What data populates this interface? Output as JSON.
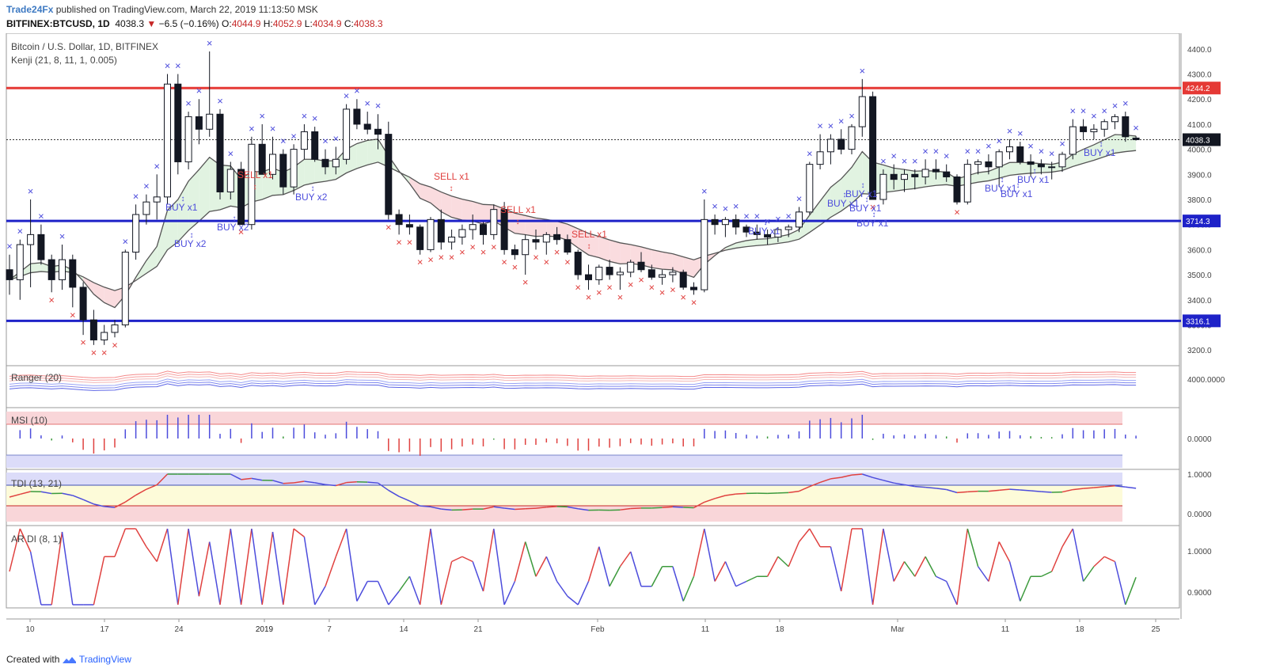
{
  "header": {
    "brand": "Trade24Fx",
    "published": "published on TradingView.com, March 22, 2019 11:13:50 MSK",
    "symbol": "BITFINEX:BTCUSD, 1D",
    "last": "4038.3",
    "change": "−6.5 (−0.16%)",
    "o_label": "O:",
    "o": "4044.9",
    "h_label": "H:",
    "h": "4052.9",
    "l_label": "L:",
    "l": "4034.9",
    "c_label": "C:",
    "c": "4038.3"
  },
  "main_pane": {
    "title": "Bitcoin / U.S. Dollar, 1D, BITFINEX",
    "indicator": "Kenji (21, 8, 11, 1, 0.005)",
    "y_ticks": [
      "4400.0",
      "4300.0",
      "4200.0",
      "4100.0",
      "4000.0",
      "3900.0",
      "3800.0",
      "3700.0",
      "3600.0",
      "3500.0",
      "3400.0",
      "3300.0",
      "3200.0"
    ],
    "price_tags": [
      {
        "label": "4244.2",
        "color": "#e53935"
      },
      {
        "label": "4038.3",
        "color": "#131722"
      },
      {
        "label": "3714.3",
        "color": "#1e22c8"
      },
      {
        "label": "3316.1",
        "color": "#1e22c8"
      }
    ],
    "signals": [
      "SELL x1",
      "SELL x1",
      "SELL x1",
      "SELL x1",
      "BUY x1",
      "BUY x2",
      "BUY x2",
      "BUY x2",
      "BUY x1",
      "BUY x1",
      "BUY x1",
      "BUY x1",
      "BUY x1",
      "BUY x1",
      "BUY x1",
      "BUY x1",
      "BUY x1"
    ]
  },
  "ranger_pane": {
    "title": "Ranger (20)",
    "tick": "4000.0000"
  },
  "msi_pane": {
    "title": "MSI (10)",
    "tick": "0.0000"
  },
  "tdi_pane": {
    "title": "TDI (13, 21)",
    "ticks": [
      "1.0000",
      "0.0000"
    ]
  },
  "ardi_pane": {
    "title": "AR DI (8, 1)",
    "ticks": [
      "1.0000",
      "0.9000"
    ]
  },
  "x_axis": [
    "10",
    "17",
    "24",
    "2019",
    "7",
    "14",
    "21",
    "Feb",
    "11",
    "18",
    "Mar",
    "11",
    "18",
    "25"
  ],
  "footer": {
    "created": "Created with",
    "brand": "TradingView"
  },
  "colors": {
    "up": "#ffffff",
    "down": "#131722",
    "red_line": "#e53935",
    "blue_line": "#1e22c8",
    "buy": "#4c4cdc",
    "sell": "#e0413f"
  },
  "chart_data": {
    "type": "candlestick",
    "timeframe": "1D",
    "symbol": "BTCUSD",
    "ohlc": [
      [
        3520,
        3580,
        3420,
        3480
      ],
      [
        3480,
        3640,
        3400,
        3620
      ],
      [
        3620,
        3800,
        3450,
        3660
      ],
      [
        3660,
        3700,
        3540,
        3560
      ],
      [
        3560,
        3580,
        3430,
        3480
      ],
      [
        3480,
        3620,
        3440,
        3560
      ],
      [
        3560,
        3580,
        3370,
        3450
      ],
      [
        3450,
        3470,
        3260,
        3320
      ],
      [
        3320,
        3360,
        3220,
        3240
      ],
      [
        3240,
        3300,
        3220,
        3270
      ],
      [
        3270,
        3320,
        3250,
        3300
      ],
      [
        3300,
        3600,
        3290,
        3590
      ],
      [
        3590,
        3780,
        3560,
        3740
      ],
      [
        3740,
        3820,
        3700,
        3790
      ],
      [
        3790,
        3900,
        3720,
        3810
      ],
      [
        3810,
        4300,
        3780,
        4260
      ],
      [
        4260,
        4300,
        3900,
        3950
      ],
      [
        3950,
        4150,
        3920,
        4130
      ],
      [
        4130,
        4200,
        4020,
        4080
      ],
      [
        4080,
        4390,
        4050,
        4140
      ],
      [
        4140,
        4160,
        3800,
        3830
      ],
      [
        3830,
        3950,
        3800,
        3920
      ],
      [
        3920,
        3950,
        3700,
        3700
      ],
      [
        3700,
        4050,
        3680,
        4020
      ],
      [
        4020,
        4100,
        3900,
        3900
      ],
      [
        3900,
        4050,
        3880,
        3980
      ],
      [
        3980,
        4000,
        3820,
        3850
      ],
      [
        3850,
        4020,
        3820,
        4000
      ],
      [
        4000,
        4100,
        3960,
        4070
      ],
      [
        4070,
        4090,
        3950,
        3960
      ],
      [
        3960,
        4000,
        3900,
        3930
      ],
      [
        3930,
        4010,
        3900,
        3960
      ],
      [
        3960,
        4180,
        3940,
        4160
      ],
      [
        4160,
        4200,
        4080,
        4100
      ],
      [
        4100,
        4150,
        4060,
        4080
      ],
      [
        4080,
        4140,
        4000,
        4060
      ],
      [
        4060,
        4110,
        3720,
        3740
      ],
      [
        3740,
        3760,
        3660,
        3700
      ],
      [
        3700,
        3740,
        3660,
        3690
      ],
      [
        3690,
        3700,
        3580,
        3600
      ],
      [
        3600,
        3730,
        3590,
        3720
      ],
      [
        3720,
        3760,
        3600,
        3630
      ],
      [
        3630,
        3680,
        3600,
        3650
      ],
      [
        3650,
        3700,
        3620,
        3680
      ],
      [
        3680,
        3740,
        3640,
        3700
      ],
      [
        3700,
        3710,
        3620,
        3660
      ],
      [
        3660,
        3780,
        3640,
        3760
      ],
      [
        3760,
        3790,
        3580,
        3600
      ],
      [
        3600,
        3620,
        3560,
        3580
      ],
      [
        3580,
        3660,
        3500,
        3640
      ],
      [
        3640,
        3680,
        3600,
        3630
      ],
      [
        3630,
        3670,
        3580,
        3660
      ],
      [
        3660,
        3690,
        3620,
        3640
      ],
      [
        3640,
        3660,
        3580,
        3590
      ],
      [
        3590,
        3600,
        3480,
        3500
      ],
      [
        3500,
        3540,
        3440,
        3480
      ],
      [
        3480,
        3540,
        3460,
        3530
      ],
      [
        3530,
        3560,
        3480,
        3500
      ],
      [
        3500,
        3530,
        3440,
        3510
      ],
      [
        3510,
        3560,
        3490,
        3550
      ],
      [
        3550,
        3590,
        3510,
        3520
      ],
      [
        3520,
        3540,
        3480,
        3490
      ],
      [
        3490,
        3520,
        3460,
        3500
      ],
      [
        3500,
        3530,
        3470,
        3510
      ],
      [
        3510,
        3520,
        3440,
        3450
      ],
      [
        3450,
        3470,
        3420,
        3440
      ],
      [
        3440,
        3800,
        3430,
        3720
      ],
      [
        3720,
        3740,
        3660,
        3700
      ],
      [
        3700,
        3730,
        3650,
        3720
      ],
      [
        3720,
        3740,
        3660,
        3690
      ],
      [
        3690,
        3700,
        3650,
        3670
      ],
      [
        3670,
        3700,
        3640,
        3660
      ],
      [
        3660,
        3680,
        3620,
        3650
      ],
      [
        3650,
        3690,
        3630,
        3680
      ],
      [
        3680,
        3700,
        3650,
        3690
      ],
      [
        3690,
        3770,
        3670,
        3750
      ],
      [
        3750,
        3950,
        3740,
        3940
      ],
      [
        3940,
        4060,
        3920,
        3990
      ],
      [
        3990,
        4060,
        3940,
        4040
      ],
      [
        4040,
        4080,
        3980,
        4000
      ],
      [
        4000,
        4100,
        3980,
        4090
      ],
      [
        4090,
        4280,
        4050,
        4210
      ],
      [
        4210,
        4230,
        3800,
        3800
      ],
      [
        3800,
        3920,
        3780,
        3900
      ],
      [
        3900,
        3940,
        3840,
        3880
      ],
      [
        3880,
        3920,
        3830,
        3900
      ],
      [
        3900,
        3920,
        3840,
        3890
      ],
      [
        3890,
        3960,
        3860,
        3920
      ],
      [
        3920,
        3960,
        3880,
        3910
      ],
      [
        3910,
        3940,
        3870,
        3890
      ],
      [
        3890,
        3900,
        3780,
        3790
      ],
      [
        3790,
        3960,
        3780,
        3940
      ],
      [
        3940,
        3960,
        3900,
        3950
      ],
      [
        3950,
        3980,
        3900,
        3930
      ],
      [
        3930,
        4000,
        3850,
        3990
      ],
      [
        3990,
        4040,
        3960,
        4010
      ],
      [
        4010,
        4030,
        3940,
        3950
      ],
      [
        3950,
        3980,
        3890,
        3940
      ],
      [
        3940,
        3960,
        3900,
        3930
      ],
      [
        3930,
        3950,
        3880,
        3930
      ],
      [
        3930,
        3990,
        3910,
        3980
      ],
      [
        3980,
        4120,
        3960,
        4090
      ],
      [
        4090,
        4120,
        4040,
        4070
      ],
      [
        4070,
        4100,
        4040,
        4080
      ],
      [
        4080,
        4120,
        4050,
        4110
      ],
      [
        4110,
        4140,
        4080,
        4130
      ],
      [
        4130,
        4150,
        4030,
        4050
      ],
      [
        4044.9,
        4052.9,
        4034.9,
        4038.3
      ]
    ],
    "levels": [
      4244.2,
      3714.3,
      3316.1
    ],
    "last_price": 4038.3,
    "ylim": [
      3150,
      4450
    ]
  }
}
